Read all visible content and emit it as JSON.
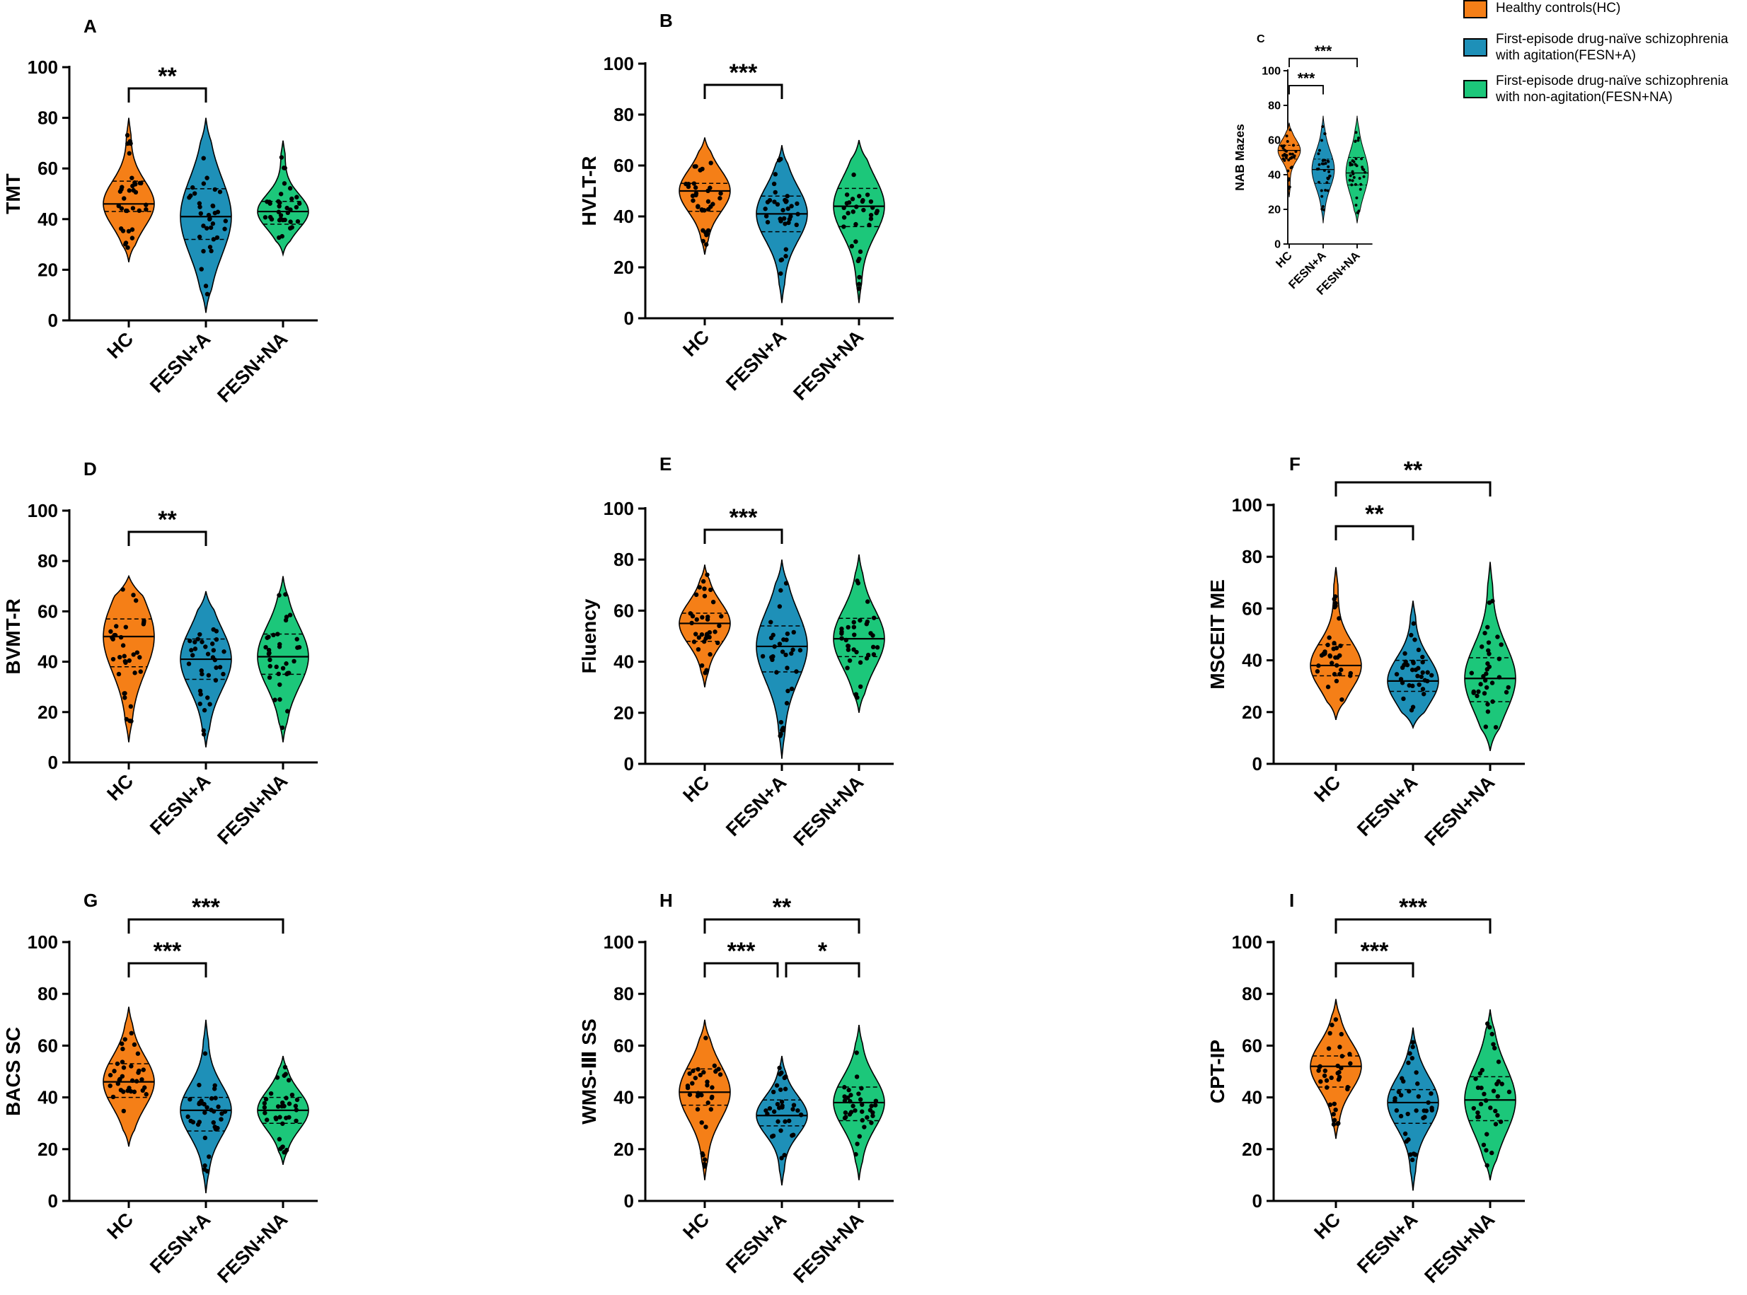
{
  "groups": [
    "HC",
    "FESN+A",
    "FESN+NA"
  ],
  "colors": {
    "HC": "#F57F17",
    "FESN+A": "#1E90B8",
    "FESN+NA": "#1CC77A",
    "line": "#000000"
  },
  "legend": [
    {
      "label": "Healthy controls(HC)",
      "color": "#F57F17"
    },
    {
      "label": "First-episode drug-naïve schizophrenia with agitation(FESN+A)",
      "color": "#1E90B8"
    },
    {
      "label": "First-episode drug-naïve schizophrenia with non-agitation(FESN+NA)",
      "color": "#1CC77A"
    }
  ],
  "chart_data": [
    {
      "type": "violin",
      "panel": "A",
      "ylabel": "TMT",
      "ylim": [
        0,
        100
      ],
      "yticks": [
        0,
        20,
        40,
        60,
        80,
        100
      ],
      "series": [
        {
          "name": "HC",
          "median": 46,
          "q1": 43,
          "q3": 55,
          "min": 23,
          "max": 80
        },
        {
          "name": "FESN+A",
          "median": 41,
          "q1": 32,
          "q3": 52,
          "min": 3,
          "max": 80
        },
        {
          "name": "FESN+NA",
          "median": 43,
          "q1": 38,
          "q3": 47,
          "min": 26,
          "max": 71
        }
      ],
      "significance": [
        {
          "from": "HC",
          "to": "FESN+A",
          "label": "**"
        }
      ]
    },
    {
      "type": "violin",
      "panel": "B",
      "ylabel": "HVLT-R",
      "ylim": [
        0,
        100
      ],
      "yticks": [
        0,
        20,
        40,
        60,
        80,
        100
      ],
      "series": [
        {
          "name": "HC",
          "median": 50,
          "q1": 42,
          "q3": 53,
          "min": 25,
          "max": 71
        },
        {
          "name": "FESN+A",
          "median": 41,
          "q1": 34,
          "q3": 48,
          "min": 6,
          "max": 68
        },
        {
          "name": "FESN+NA",
          "median": 44,
          "q1": 36,
          "q3": 51,
          "min": 6,
          "max": 70
        }
      ],
      "significance": [
        {
          "from": "HC",
          "to": "FESN+A",
          "label": "***"
        }
      ]
    },
    {
      "type": "violin",
      "panel": "C",
      "ylabel": "NAB Mazes",
      "ylim": [
        0,
        100
      ],
      "yticks": [
        0,
        20,
        40,
        60,
        80,
        100
      ],
      "series": [
        {
          "name": "HC",
          "median": 54,
          "q1": 49,
          "q3": 57,
          "min": 27,
          "max": 70
        },
        {
          "name": "FESN+A",
          "median": 43,
          "q1": 35,
          "q3": 49,
          "min": 12,
          "max": 74
        },
        {
          "name": "FESN+NA",
          "median": 41,
          "q1": 34,
          "q3": 50,
          "min": 12,
          "max": 74
        }
      ],
      "significance": [
        {
          "from": "HC",
          "to": "FESN+A",
          "label": "***"
        },
        {
          "from": "HC",
          "to": "FESN+NA",
          "label": "***"
        }
      ]
    },
    {
      "type": "violin",
      "panel": "D",
      "ylabel": "BVMT-R",
      "ylim": [
        0,
        100
      ],
      "yticks": [
        0,
        20,
        40,
        60,
        80,
        100
      ],
      "series": [
        {
          "name": "HC",
          "median": 50,
          "q1": 38,
          "q3": 57,
          "min": 8,
          "max": 74
        },
        {
          "name": "FESN+A",
          "median": 41,
          "q1": 33,
          "q3": 49,
          "min": 6,
          "max": 68
        },
        {
          "name": "FESN+NA",
          "median": 42,
          "q1": 35,
          "q3": 51,
          "min": 8,
          "max": 74
        }
      ],
      "significance": [
        {
          "from": "HC",
          "to": "FESN+A",
          "label": "**"
        }
      ]
    },
    {
      "type": "violin",
      "panel": "E",
      "ylabel": "Fluency",
      "ylim": [
        0,
        100
      ],
      "yticks": [
        0,
        20,
        40,
        60,
        80,
        100
      ],
      "series": [
        {
          "name": "HC",
          "median": 55,
          "q1": 48,
          "q3": 59,
          "min": 30,
          "max": 78
        },
        {
          "name": "FESN+A",
          "median": 46,
          "q1": 36,
          "q3": 54,
          "min": 2,
          "max": 80
        },
        {
          "name": "FESN+NA",
          "median": 49,
          "q1": 42,
          "q3": 57,
          "min": 20,
          "max": 82
        }
      ],
      "significance": [
        {
          "from": "HC",
          "to": "FESN+A",
          "label": "***"
        }
      ]
    },
    {
      "type": "violin",
      "panel": "F",
      "ylabel": "MSCEIT ME",
      "ylim": [
        0,
        100
      ],
      "yticks": [
        0,
        20,
        40,
        60,
        80,
        100
      ],
      "series": [
        {
          "name": "HC",
          "median": 38,
          "q1": 34,
          "q3": 46,
          "min": 17,
          "max": 76
        },
        {
          "name": "FESN+A",
          "median": 32,
          "q1": 28,
          "q3": 40,
          "min": 14,
          "max": 63
        },
        {
          "name": "FESN+NA",
          "median": 33,
          "q1": 24,
          "q3": 41,
          "min": 5,
          "max": 78
        }
      ],
      "significance": [
        {
          "from": "HC",
          "to": "FESN+A",
          "label": "**"
        },
        {
          "from": "HC",
          "to": "FESN+NA",
          "label": "**"
        }
      ]
    },
    {
      "type": "violin",
      "panel": "G",
      "ylabel": "BACS SC",
      "ylim": [
        0,
        100
      ],
      "yticks": [
        0,
        20,
        40,
        60,
        80,
        100
      ],
      "series": [
        {
          "name": "HC",
          "median": 46,
          "q1": 40,
          "q3": 53,
          "min": 21,
          "max": 75
        },
        {
          "name": "FESN+A",
          "median": 35,
          "q1": 27,
          "q3": 40,
          "min": 3,
          "max": 70
        },
        {
          "name": "FESN+NA",
          "median": 35,
          "q1": 30,
          "q3": 40,
          "min": 14,
          "max": 56
        }
      ],
      "significance": [
        {
          "from": "HC",
          "to": "FESN+A",
          "label": "***"
        },
        {
          "from": "HC",
          "to": "FESN+NA",
          "label": "***"
        }
      ]
    },
    {
      "type": "violin",
      "panel": "H",
      "ylabel": "WMS-Ⅲ SS",
      "ylim": [
        0,
        100
      ],
      "yticks": [
        0,
        20,
        40,
        60,
        80,
        100
      ],
      "series": [
        {
          "name": "HC",
          "median": 42,
          "q1": 37,
          "q3": 51,
          "min": 8,
          "max": 70
        },
        {
          "name": "FESN+A",
          "median": 33,
          "q1": 29,
          "q3": 39,
          "min": 6,
          "max": 56
        },
        {
          "name": "FESN+NA",
          "median": 38,
          "q1": 31,
          "q3": 44,
          "min": 8,
          "max": 68
        }
      ],
      "significance": [
        {
          "from": "HC",
          "to": "FESN+A",
          "label": "***"
        },
        {
          "from": "FESN+A",
          "to": "FESN+NA",
          "label": "*"
        },
        {
          "from": "HC",
          "to": "FESN+NA",
          "label": "**"
        }
      ]
    },
    {
      "type": "violin",
      "panel": "I",
      "ylabel": "CPT-IP",
      "ylim": [
        0,
        100
      ],
      "yticks": [
        0,
        20,
        40,
        60,
        80,
        100
      ],
      "series": [
        {
          "name": "HC",
          "median": 52,
          "q1": 44,
          "q3": 56,
          "min": 24,
          "max": 78
        },
        {
          "name": "FESN+A",
          "median": 38,
          "q1": 30,
          "q3": 43,
          "min": 4,
          "max": 67
        },
        {
          "name": "FESN+NA",
          "median": 39,
          "q1": 31,
          "q3": 48,
          "min": 8,
          "max": 74
        }
      ],
      "significance": [
        {
          "from": "HC",
          "to": "FESN+A",
          "label": "***"
        },
        {
          "from": "HC",
          "to": "FESN+NA",
          "label": "***"
        }
      ]
    }
  ]
}
